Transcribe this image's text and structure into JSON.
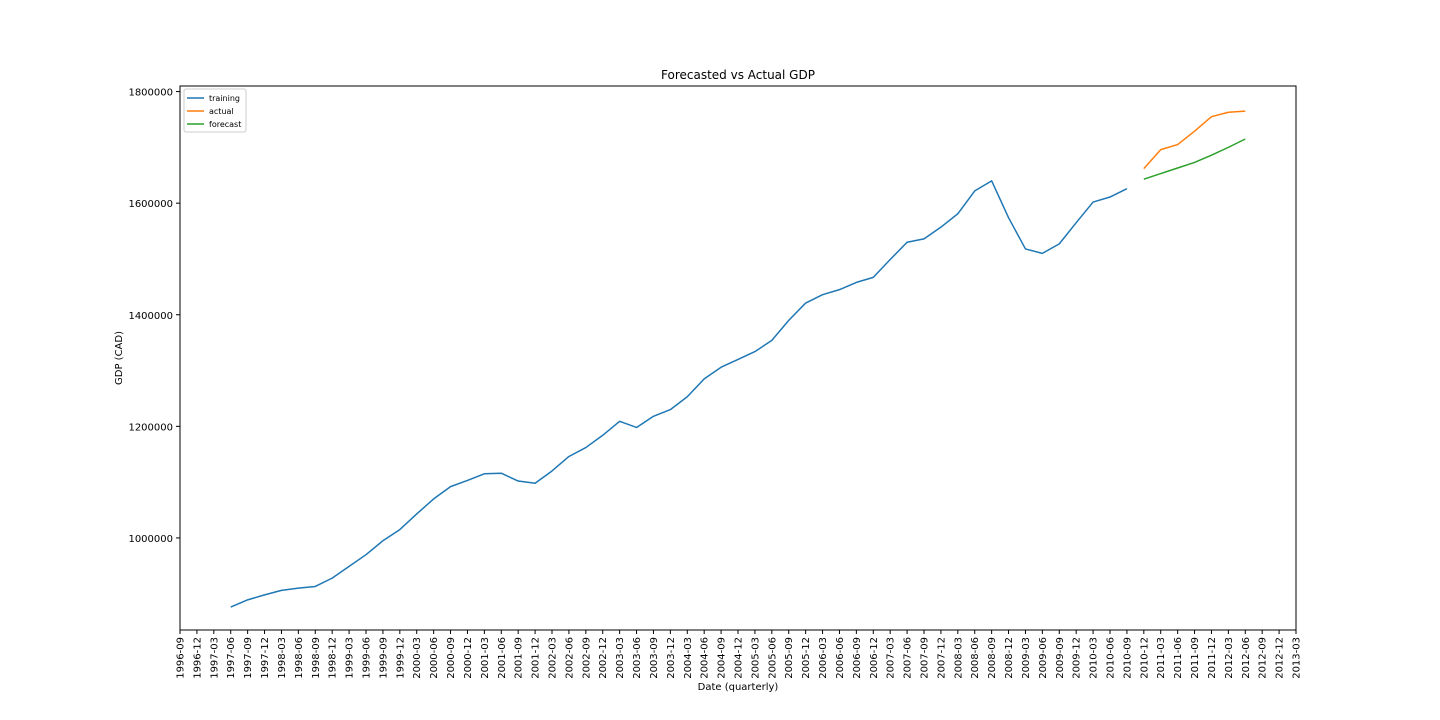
{
  "chart_data": {
    "type": "line",
    "title": "Forecasted vs Actual GDP",
    "xlabel": "Date (quarterly)",
    "ylabel": "GDP (CAD)",
    "ylim": [
      835000,
      1810000
    ],
    "grid": false,
    "legend_position": "top-left",
    "x_ticks": [
      "1996-09",
      "1996-12",
      "1997-03",
      "1997-06",
      "1997-09",
      "1997-12",
      "1998-03",
      "1998-06",
      "1998-09",
      "1998-12",
      "1999-03",
      "1999-06",
      "1999-09",
      "1999-12",
      "2000-03",
      "2000-06",
      "2000-09",
      "2000-12",
      "2001-03",
      "2001-06",
      "2001-09",
      "2001-12",
      "2002-03",
      "2002-06",
      "2002-09",
      "2002-12",
      "2003-03",
      "2003-06",
      "2003-09",
      "2003-12",
      "2004-03",
      "2004-06",
      "2004-09",
      "2004-12",
      "2005-03",
      "2005-06",
      "2005-09",
      "2005-12",
      "2006-03",
      "2006-06",
      "2006-09",
      "2006-12",
      "2007-03",
      "2007-06",
      "2007-09",
      "2007-12",
      "2008-03",
      "2008-06",
      "2008-09",
      "2008-12",
      "2009-03",
      "2009-06",
      "2009-09",
      "2009-12",
      "2010-03",
      "2010-06",
      "2010-09",
      "2010-12",
      "2011-03",
      "2011-06",
      "2011-09",
      "2011-12",
      "2012-03",
      "2012-06",
      "2012-09",
      "2012-12",
      "2013-03"
    ],
    "y_ticks": [
      1000000,
      1200000,
      1400000,
      1600000,
      1800000
    ],
    "series": [
      {
        "name": "training",
        "color": "#1f77b4",
        "x": [
          "1997-06",
          "1997-09",
          "1997-12",
          "1998-03",
          "1998-06",
          "1998-09",
          "1998-12",
          "1999-03",
          "1999-06",
          "1999-09",
          "1999-12",
          "2000-03",
          "2000-06",
          "2000-09",
          "2000-12",
          "2001-03",
          "2001-06",
          "2001-09",
          "2001-12",
          "2002-03",
          "2002-06",
          "2002-09",
          "2002-12",
          "2003-03",
          "2003-06",
          "2003-09",
          "2003-12",
          "2004-03",
          "2004-06",
          "2004-09",
          "2004-12",
          "2005-03",
          "2005-06",
          "2005-09",
          "2005-12",
          "2006-03",
          "2006-06",
          "2006-09",
          "2006-12",
          "2007-03",
          "2007-06",
          "2007-09",
          "2007-12",
          "2008-03",
          "2008-06",
          "2008-09",
          "2008-12",
          "2009-03",
          "2009-06",
          "2009-09",
          "2009-12",
          "2010-03",
          "2010-06",
          "2010-09"
        ],
        "values": [
          876000,
          889000,
          898000,
          906000,
          910000,
          913000,
          928000,
          949000,
          970000,
          995000,
          1015000,
          1043000,
          1070000,
          1092000,
          1103000,
          1115000,
          1116000,
          1102000,
          1098000,
          1120000,
          1146000,
          1162000,
          1184000,
          1209000,
          1198000,
          1218000,
          1230000,
          1253000,
          1285000,
          1306000,
          1320000,
          1334000,
          1354000,
          1390000,
          1421000,
          1436000,
          1445000,
          1458000,
          1467000,
          1499000,
          1530000,
          1536000,
          1557000,
          1581000,
          1622000,
          1640000,
          1574000,
          1518000,
          1510000,
          1527000,
          1565000,
          1602000,
          1611000,
          1626000
        ]
      },
      {
        "name": "actual",
        "color": "#ff7f0e",
        "x": [
          "2010-12",
          "2011-03",
          "2011-06",
          "2011-09",
          "2011-12",
          "2012-03",
          "2012-06"
        ],
        "values": [
          1662000,
          1696000,
          1705000,
          1729000,
          1755000,
          1763000,
          1765000
        ]
      },
      {
        "name": "forecast",
        "color": "#2ca02c",
        "x": [
          "2010-12",
          "2011-03",
          "2011-06",
          "2011-09",
          "2011-12",
          "2012-03",
          "2012-06"
        ],
        "values": [
          1643000,
          1653000,
          1663000,
          1673000,
          1686000,
          1700000,
          1715000
        ]
      }
    ]
  }
}
